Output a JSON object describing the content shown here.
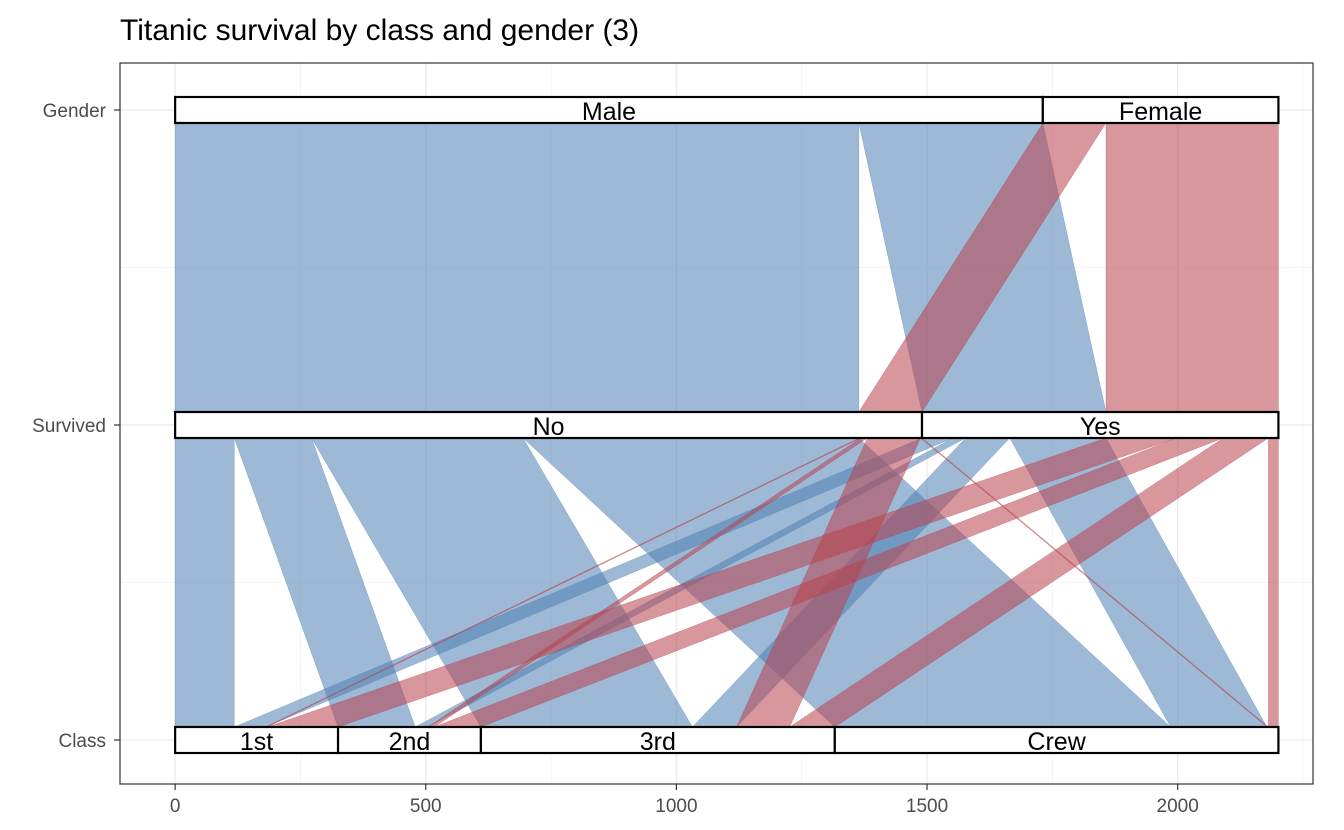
{
  "chart_data": {
    "type": "parallel-sets",
    "title": "Titanic survival by class and gender (3)",
    "axes": [
      "Gender",
      "Survived",
      "Class"
    ],
    "xlim": [
      -110,
      2270
    ],
    "x_ticks": [
      "0",
      "500",
      "1000",
      "1500",
      "2000"
    ],
    "x_tick_values": [
      0,
      500,
      1000,
      1500,
      2000
    ],
    "grid": true,
    "colors": {
      "Male": "#4f7fb3",
      "Female": "#b8424c"
    },
    "categories": {
      "Gender": [
        {
          "label": "Male",
          "start": 0,
          "end": 1731
        },
        {
          "label": "Female",
          "start": 1731,
          "end": 2201
        }
      ],
      "Survived": [
        {
          "label": "No",
          "start": 0,
          "end": 1490
        },
        {
          "label": "Yes",
          "start": 1490,
          "end": 2201
        }
      ],
      "Class": [
        {
          "label": "1st",
          "start": 0,
          "end": 325
        },
        {
          "label": "2nd",
          "start": 325,
          "end": 610
        },
        {
          "label": "3rd",
          "start": 610,
          "end": 1316
        },
        {
          "label": "Crew",
          "start": 1316,
          "end": 2201
        }
      ]
    },
    "flows": [
      {
        "gender": "Male",
        "survived": "No",
        "cls": "1st",
        "count": 118
      },
      {
        "gender": "Male",
        "survived": "No",
        "cls": "2nd",
        "count": 154
      },
      {
        "gender": "Male",
        "survived": "No",
        "cls": "3rd",
        "count": 422
      },
      {
        "gender": "Male",
        "survived": "No",
        "cls": "Crew",
        "count": 670
      },
      {
        "gender": "Male",
        "survived": "Yes",
        "cls": "1st",
        "count": 62
      },
      {
        "gender": "Male",
        "survived": "Yes",
        "cls": "2nd",
        "count": 25
      },
      {
        "gender": "Male",
        "survived": "Yes",
        "cls": "3rd",
        "count": 88
      },
      {
        "gender": "Male",
        "survived": "Yes",
        "cls": "Crew",
        "count": 192
      },
      {
        "gender": "Female",
        "survived": "No",
        "cls": "1st",
        "count": 4
      },
      {
        "gender": "Female",
        "survived": "No",
        "cls": "2nd",
        "count": 13
      },
      {
        "gender": "Female",
        "survived": "No",
        "cls": "3rd",
        "count": 106
      },
      {
        "gender": "Female",
        "survived": "No",
        "cls": "Crew",
        "count": 3
      },
      {
        "gender": "Female",
        "survived": "Yes",
        "cls": "1st",
        "count": 141
      },
      {
        "gender": "Female",
        "survived": "Yes",
        "cls": "2nd",
        "count": 93
      },
      {
        "gender": "Female",
        "survived": "Yes",
        "cls": "3rd",
        "count": 90
      },
      {
        "gender": "Female",
        "survived": "Yes",
        "cls": "Crew",
        "count": 20
      }
    ]
  }
}
